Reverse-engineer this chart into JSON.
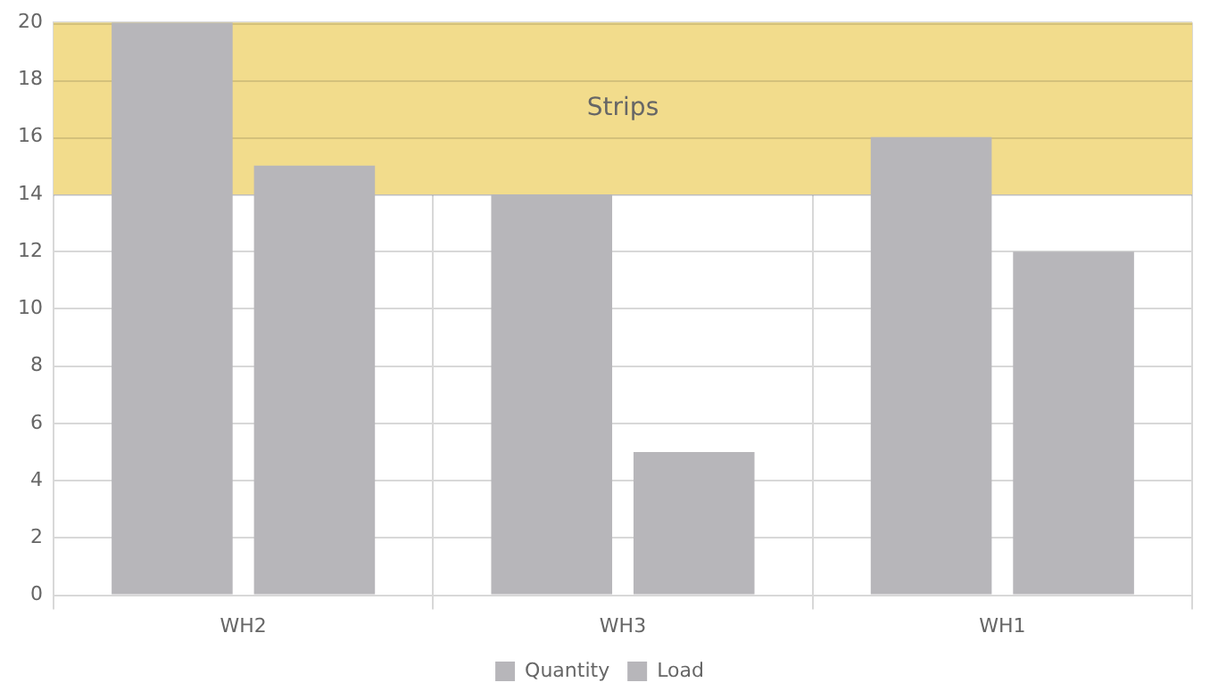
{
  "chart_data": {
    "type": "bar",
    "categories": [
      "WH2",
      "WH3",
      "WH1"
    ],
    "series": [
      {
        "name": "Quantity",
        "color": "#b7b6ba",
        "values": [
          20,
          14,
          16
        ]
      },
      {
        "name": "Load",
        "color": "#b7b6ba",
        "values": [
          15,
          5,
          12
        ]
      }
    ],
    "ylim": [
      0,
      20
    ],
    "yticks": [
      0,
      2,
      4,
      6,
      8,
      10,
      12,
      14,
      16,
      18,
      20
    ],
    "grid": true,
    "legend": "bottom",
    "bands": [
      {
        "axis": "y",
        "from": 14,
        "to": 20,
        "label": "Strips",
        "color": "#f2dc8c"
      }
    ]
  }
}
